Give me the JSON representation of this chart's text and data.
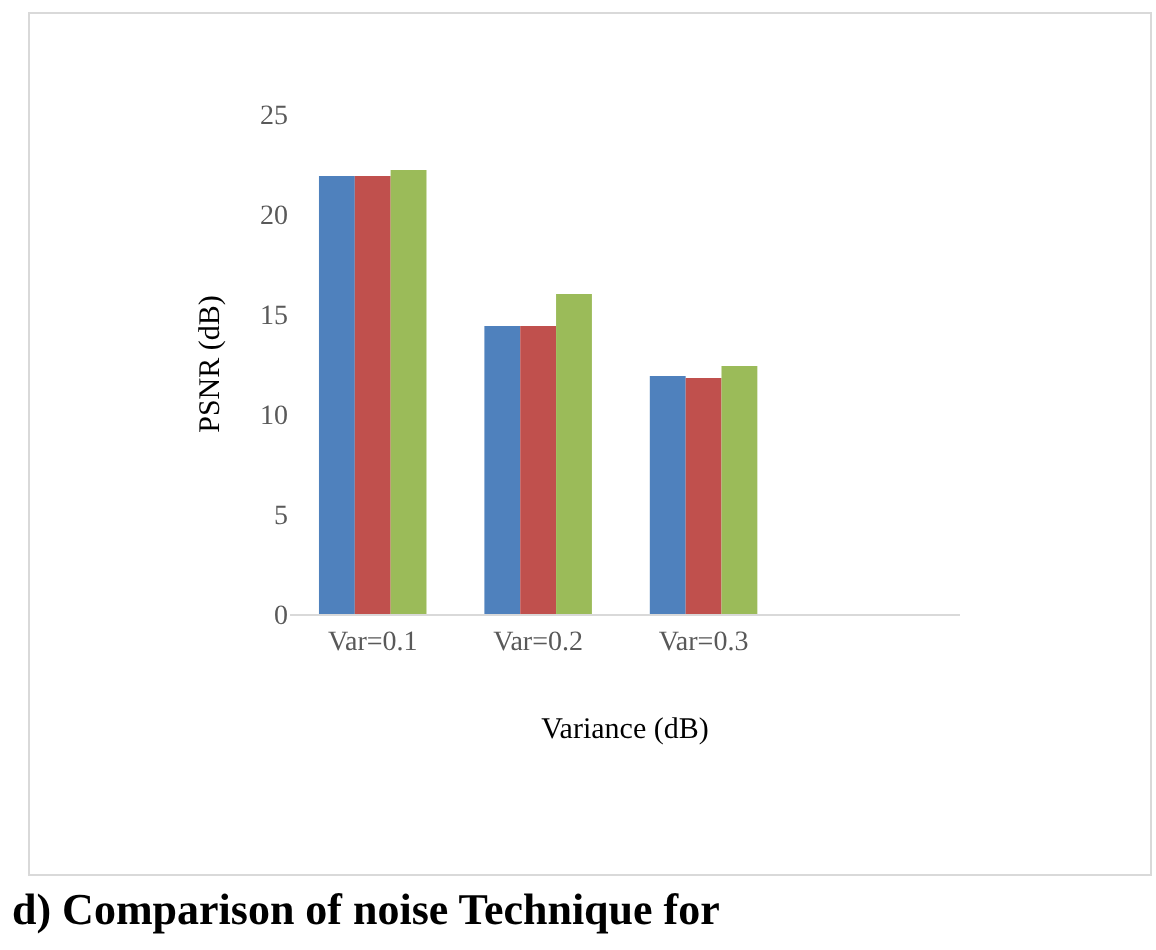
{
  "chart_data": {
    "type": "bar",
    "ylabel": "PSNR (dB)",
    "xlabel": "Variance (dB)",
    "categories": [
      "Var=0.1",
      "Var=0.2",
      "Var=0.3"
    ],
    "series": [
      {
        "color": "#4f81bd",
        "values": [
          21.9,
          14.4,
          11.9
        ]
      },
      {
        "color": "#c0504d",
        "values": [
          21.9,
          14.4,
          11.8
        ]
      },
      {
        "color": "#9bbb59",
        "values": [
          22.2,
          16.0,
          12.4
        ]
      }
    ],
    "ylim": [
      0,
      25
    ],
    "yticks": [
      0,
      5,
      10,
      15,
      20,
      25
    ],
    "grid": false,
    "annotations": [
      "d) Comparison of noise Technique for"
    ]
  }
}
